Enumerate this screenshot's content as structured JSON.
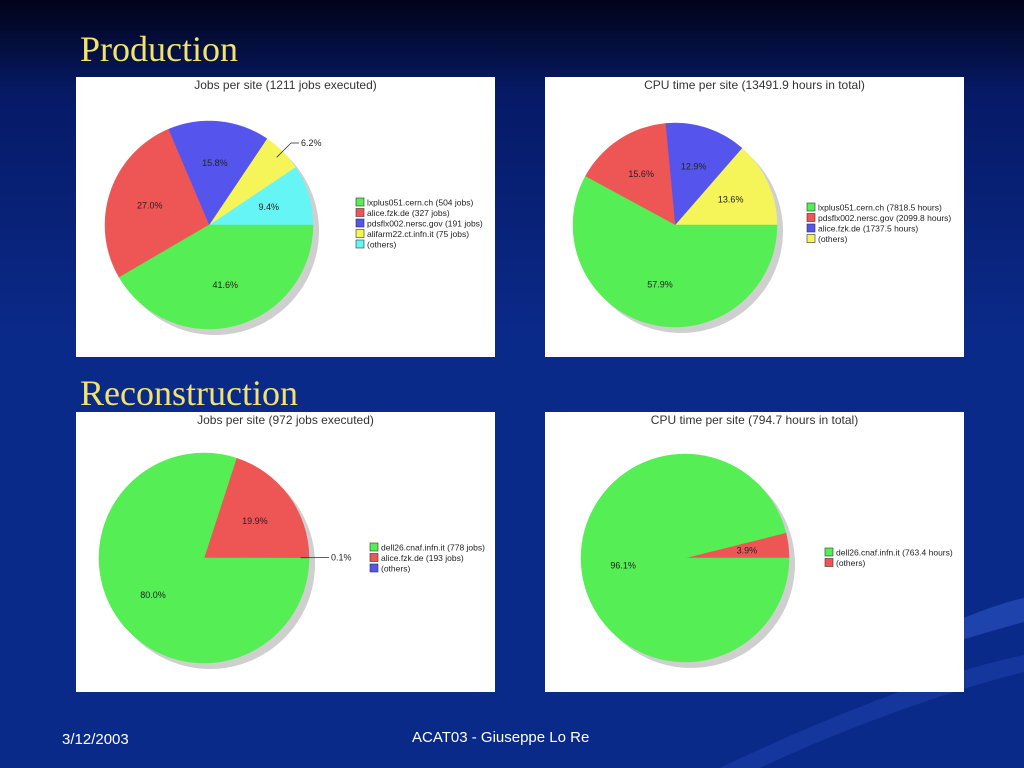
{
  "slide": {
    "section_production": "Production",
    "section_reconstruction": "Reconstruction",
    "footer_date": "3/12/2003",
    "footer_center": "ACAT03 - Giuseppe Lo Re"
  },
  "colors": {
    "background": "#0a2a8a",
    "title": "#f2e36a",
    "green": "#55ee55",
    "red": "#ee5555",
    "blue": "#5555ee",
    "yellow": "#f5f55a",
    "cyan": "#66f5f5"
  },
  "chart_data": [
    {
      "type": "pie",
      "title": "Jobs per site (1211 jobs executed)",
      "legend_position": "right",
      "slices": [
        {
          "label": "lxplus051.cern.ch (504 jobs)",
          "value": 41.6,
          "value_label": "41.6%",
          "color": "#55ee55"
        },
        {
          "label": "alice.fzk.de (327 jobs)",
          "value": 27.0,
          "value_label": "27.0%",
          "color": "#ee5555"
        },
        {
          "label": "pdsflx002.nersc.gov (191 jobs)",
          "value": 15.8,
          "value_label": "15.8%",
          "color": "#5555ee"
        },
        {
          "label": "alifarm22.ct.infn.it (75 jobs)",
          "value": 6.2,
          "value_label": "6.2%",
          "color": "#f5f55a"
        },
        {
          "label": "(others)",
          "value": 9.4,
          "value_label": "9.4%",
          "color": "#66f5f5"
        }
      ]
    },
    {
      "type": "pie",
      "title": "CPU time per site (13491.9 hours in total)",
      "legend_position": "right",
      "slices": [
        {
          "label": "lxplus051.cern.ch (7818.5 hours)",
          "value": 57.9,
          "value_label": "57.9%",
          "color": "#55ee55"
        },
        {
          "label": "pdsflx002.nersc.gov (2099.8 hours)",
          "value": 15.6,
          "value_label": "15.6%",
          "color": "#ee5555"
        },
        {
          "label": "alice.fzk.de (1737.5 hours)",
          "value": 12.9,
          "value_label": "12.9%",
          "color": "#5555ee"
        },
        {
          "label": "(others)",
          "value": 13.6,
          "value_label": "13.6%",
          "color": "#f5f55a"
        }
      ]
    },
    {
      "type": "pie",
      "title": "Jobs per site (972 jobs executed)",
      "legend_position": "right",
      "slices": [
        {
          "label": "dell26.cnaf.infn.it (778 jobs)",
          "value": 80.0,
          "value_label": "80.0%",
          "color": "#55ee55"
        },
        {
          "label": "alice.fzk.de (193 jobs)",
          "value": 19.9,
          "value_label": "19.9%",
          "color": "#ee5555"
        },
        {
          "label": "(others)",
          "value": 0.1,
          "value_label": "0.1%",
          "color": "#5555ee"
        }
      ]
    },
    {
      "type": "pie",
      "title": "CPU time per site (794.7 hours in total)",
      "legend_position": "right",
      "slices": [
        {
          "label": "dell26.cnaf.infn.it (763.4 hours)",
          "value": 96.1,
          "value_label": "96.1%",
          "color": "#55ee55"
        },
        {
          "label": "(others)",
          "value": 3.9,
          "value_label": "3.9%",
          "color": "#ee5555"
        }
      ]
    }
  ]
}
